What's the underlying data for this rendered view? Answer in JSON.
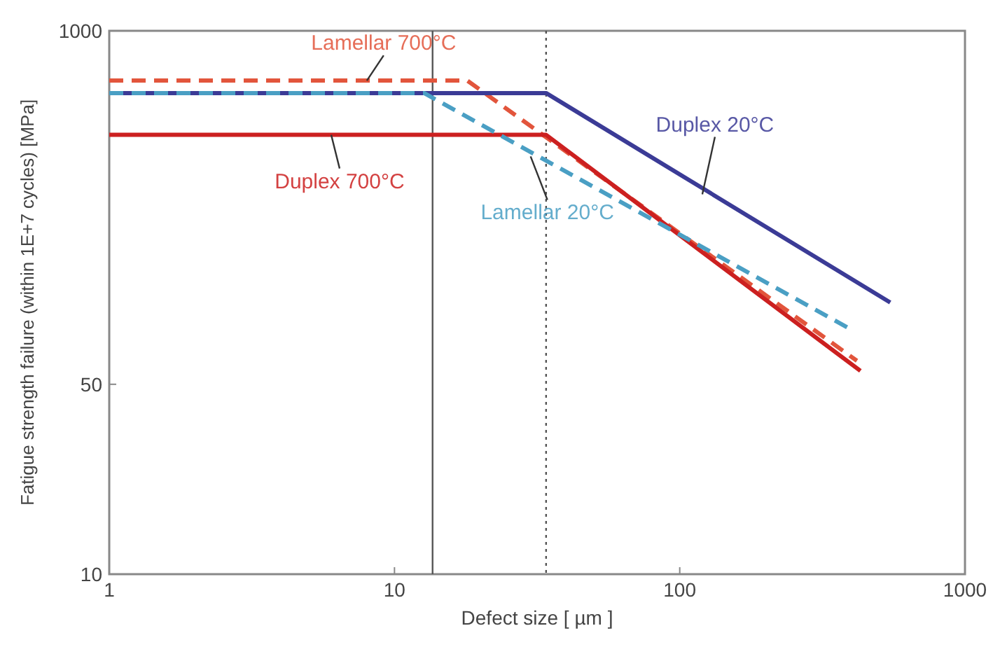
{
  "chart_data": {
    "type": "line",
    "xlabel": "Defect size [ µm ]",
    "ylabel": "Fatigue strength failure (within 1E+7 cycles)  [MPa]",
    "log": "xy",
    "xlim": [
      1,
      1000
    ],
    "ylim": [
      10,
      1000
    ],
    "xticks": [
      1,
      10,
      100,
      1000
    ],
    "yticks": [
      10,
      50,
      1000
    ],
    "grid": false,
    "series": [
      {
        "x": [
          1,
          18,
          418
        ],
        "values": [
          656,
          656,
          61
        ],
        "color": "#e2553c",
        "line_style": "dashed"
      },
      {
        "x": [
          1,
          34,
          430
        ],
        "values": [
          414,
          414,
          56
        ],
        "color": "#cc2020",
        "line_style": "solid"
      },
      {
        "x": [
          1,
          34,
          547
        ],
        "values": [
          590,
          590,
          100
        ],
        "color": "#3b3b96",
        "line_style": "solid"
      },
      {
        "x": [
          1,
          12.7,
          395
        ],
        "values": [
          590,
          590,
          80
        ],
        "color": "#4a9fc4",
        "line_style": "dashed"
      }
    ],
    "ref_lines": [
      {
        "axis": "x",
        "value": 13.6,
        "color": "#555555",
        "line_style": "solid"
      },
      {
        "axis": "x",
        "value": 34,
        "color": "#555555",
        "line_style": "dotted"
      }
    ],
    "annotations": [
      {
        "text": "Lamellar 700°C",
        "x": 8,
        "y": 656
      },
      {
        "text": "Duplex 700°C",
        "x": 6,
        "y": 414
      },
      {
        "text": "Duplex 20°C",
        "x": 120,
        "y": 250
      },
      {
        "text": "Lamellar 20°C",
        "x": 30,
        "y": 345
      }
    ]
  }
}
